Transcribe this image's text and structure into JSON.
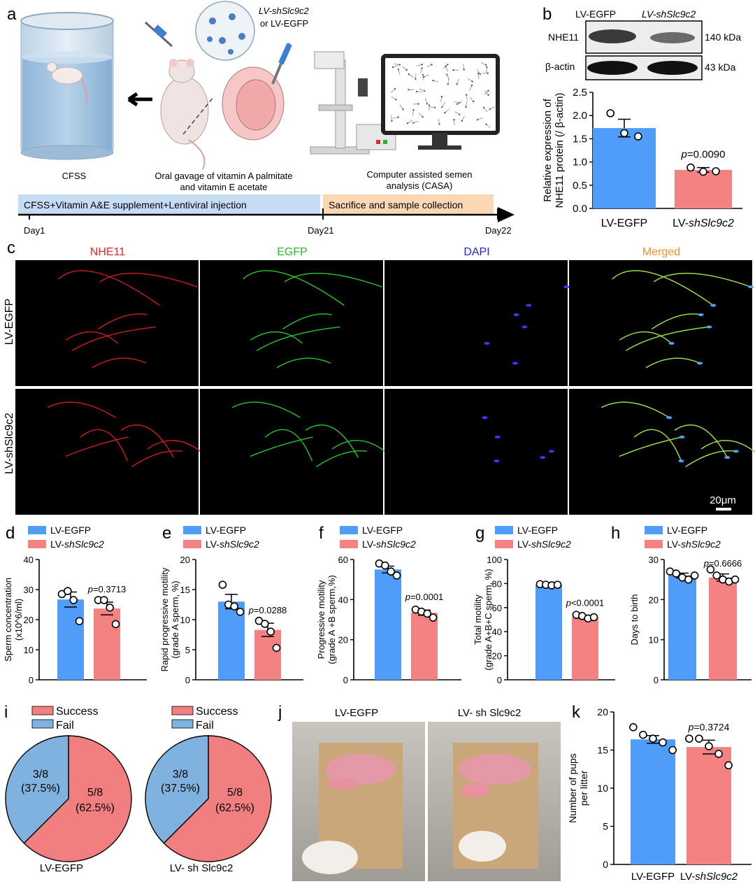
{
  "panel_letters": [
    "a",
    "b",
    "c",
    "d",
    "e",
    "f",
    "g",
    "h",
    "i",
    "j",
    "k"
  ],
  "colors": {
    "blue": "#4F9CF9",
    "red": "#F58282",
    "pie_blue": "#7FB2DE",
    "pie_red": "#F27F7F"
  },
  "panel_a": {
    "virus_label_1": "LV-shSlc9c2",
    "virus_label_2": "or LV-EGFP",
    "cfss_label": "CFSS",
    "gavage_line1": "Oral gavage of vitamin A palmitate",
    "gavage_line2": "and vitamin E acetate",
    "casa_line1": "Computer assisted semen",
    "casa_line2": "analysis (CASA)",
    "bar1": "CFSS+Vitamin A&E supplement+Lentiviral injection",
    "bar2": "Sacrifice and sample collection",
    "day1": "Day1",
    "day21": "Day21",
    "day22": "Day22"
  },
  "panel_b": {
    "blot_lane1": "LV-EGFP",
    "blot_lane2": "LV-shSlc9c2",
    "band1": "NHE11",
    "band2": "β-actin",
    "kda1": "140 kDa",
    "kda2": "43 kDa"
  },
  "panel_c": {
    "col_labels": [
      "NHE11",
      "EGFP",
      "DAPI",
      "Merged"
    ],
    "row_labels": [
      "LV-EGFP",
      "LV-shSlc9c2"
    ],
    "scale_bar": "20μm"
  },
  "legend": {
    "egfp": "LV-EGFP",
    "sh": "LV-shSlc9c2"
  },
  "panel_i": {
    "legend_success": "Success",
    "legend_fail": "Fail",
    "fail_frac": "3/8",
    "fail_pct": "(37.5%)",
    "succ_frac": "5/8",
    "succ_pct": "(62.5%)",
    "label_left": "LV-EGFP",
    "label_right": "LV- sh Slc9c2"
  },
  "panel_j": {
    "label_left": "LV-EGFP",
    "label_right": "LV- sh Slc9c2"
  },
  "chart_data": [
    {
      "id": "b",
      "type": "bar",
      "categories": [
        "LV-EGFP",
        "LV-shSlc9c2"
      ],
      "values": [
        1.73,
        0.83
      ],
      "sem": [
        0.19,
        0.05
      ],
      "points": [
        [
          2.05,
          1.62,
          1.55
        ],
        [
          0.88,
          0.79,
          0.8
        ]
      ],
      "ylabel": "Relative expression of NHE11 protein (/ β-actin)",
      "ylim": [
        0,
        2.5
      ],
      "ticks": [
        "0.0",
        "0.5",
        "1.0",
        "1.5",
        "2.0",
        "2.5"
      ],
      "pvalue": "p=0.0090"
    },
    {
      "id": "d",
      "type": "bar",
      "categories": [
        "LV-EGFP",
        "LV-shSlc9c2"
      ],
      "values": [
        26.7,
        23.7
      ],
      "sem": [
        2.5,
        2.1
      ],
      "points": [
        [
          28.5,
          29.5,
          26.5,
          19.5
        ],
        [
          26.5,
          26.5,
          24,
          18.5
        ]
      ],
      "ylabel": "Sperm concentration (x10^6/ml)",
      "ylim": [
        0,
        40
      ],
      "ticks": [
        "0",
        "10",
        "20",
        "30",
        "40"
      ],
      "pvalue": "p=0.3713"
    },
    {
      "id": "e",
      "type": "bar",
      "categories": [
        "LV-EGFP",
        "LV-shSlc9c2"
      ],
      "values": [
        13.0,
        8.3
      ],
      "sem": [
        1.2,
        1.1
      ],
      "points": [
        [
          15.8,
          12.5,
          12.2,
          11.3
        ],
        [
          9.8,
          9.3,
          8.0,
          5.3
        ]
      ],
      "ylabel": "Rapid progressive motility (grade A sperm, %)",
      "ylim": [
        0,
        20
      ],
      "ticks": [
        "0",
        "5",
        "10",
        "15",
        "20"
      ],
      "pvalue": "p=0.0288"
    },
    {
      "id": "f",
      "type": "bar",
      "categories": [
        "LV-EGFP",
        "LV-shSlc9c2"
      ],
      "values": [
        55,
        33.5
      ],
      "sem": [
        1.7,
        1.3
      ],
      "points": [
        [
          58,
          57,
          54,
          52
        ],
        [
          35,
          34,
          33,
          31
        ]
      ],
      "ylabel": "Progressive motility (grade A +B sperm,%)",
      "ylim": [
        0,
        60
      ],
      "ticks": [
        "0",
        "20",
        "40",
        "60"
      ],
      "pvalue": "p=0.0001"
    },
    {
      "id": "g",
      "type": "bar",
      "categories": [
        "LV-EGFP",
        "LV-shSlc9c2"
      ],
      "values": [
        79,
        52
      ],
      "sem": [
        0.6,
        1.1
      ],
      "points": [
        [
          79.5,
          79,
          78.5,
          79
        ],
        [
          54,
          53,
          51,
          52
        ]
      ],
      "ylabel": "Total motility (grade A+B+C sperm, %)",
      "ylim": [
        0,
        100
      ],
      "ticks": [
        "0",
        "20",
        "40",
        "60",
        "80",
        "100"
      ],
      "pvalue": "p<0.0001"
    },
    {
      "id": "h",
      "type": "bar",
      "categories": [
        "LV-EGFP",
        "LV-shSlc9c2"
      ],
      "values": [
        26,
        25.5
      ],
      "sem": [
        0.6,
        0.9
      ],
      "points": [
        [
          27,
          26.5,
          25.5,
          25,
          26
        ],
        [
          27.5,
          26,
          25,
          24.5,
          25
        ]
      ],
      "ylabel": "Days to birth",
      "ylim": [
        0,
        30
      ],
      "ticks": [
        "0",
        "10",
        "20",
        "30"
      ],
      "pvalue": "p=0.6666"
    },
    {
      "id": "i",
      "type": "pie",
      "labels": [
        "Success",
        "Fail"
      ],
      "values": [
        5,
        3
      ],
      "groups": [
        "LV-EGFP",
        "LV- sh Slc9c2"
      ]
    },
    {
      "id": "k",
      "type": "bar",
      "categories": [
        "LV-EGFP",
        "LV-shSlc9c2"
      ],
      "values": [
        16.4,
        15.4
      ],
      "sem": [
        0.5,
        0.9
      ],
      "points": [
        [
          18,
          17,
          16.5,
          16,
          15
        ],
        [
          16.5,
          16.5,
          15.5,
          14.5,
          13
        ]
      ],
      "ylabel": "Number of pups per litter",
      "ylim": [
        0,
        20
      ],
      "ticks": [
        "0",
        "5",
        "10",
        "15",
        "20"
      ],
      "pvalue": "p=0.3724"
    }
  ]
}
